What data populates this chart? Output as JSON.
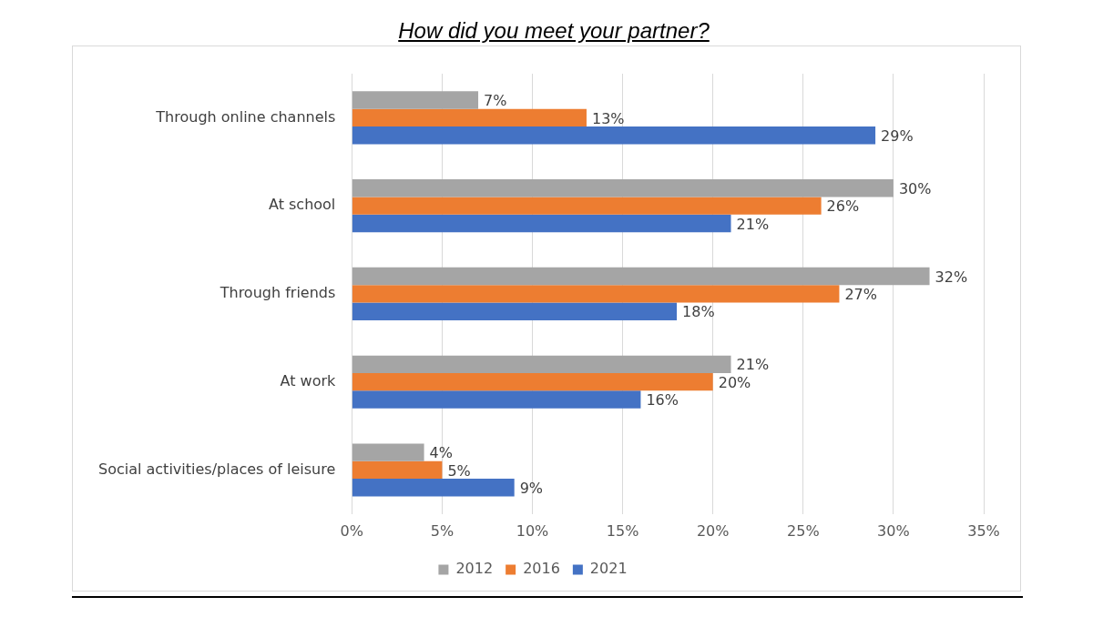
{
  "chart_data": {
    "type": "bar",
    "orientation": "horizontal",
    "title": "How did you meet your partner?",
    "categories": [
      "Through online channels",
      "At school",
      "Through friends",
      "At work",
      "Social activities/places of leisure"
    ],
    "series": [
      {
        "name": "2012",
        "color": "#a5a5a5",
        "values": [
          7,
          30,
          32,
          21,
          4
        ],
        "value_labels": [
          "7%",
          "30%",
          "32%",
          "21%",
          "4%"
        ]
      },
      {
        "name": "2016",
        "color": "#ed7d31",
        "values": [
          13,
          26,
          27,
          20,
          5
        ],
        "value_labels": [
          "13%",
          "26%",
          "27%",
          "20%",
          "5%"
        ]
      },
      {
        "name": "2021",
        "color": "#4472c4",
        "values": [
          29,
          21,
          18,
          16,
          9
        ],
        "value_labels": [
          "29%",
          "21%",
          "18%",
          "16%",
          "9%"
        ]
      }
    ],
    "xlim": [
      0,
      35
    ],
    "xticks": [
      {
        "value": 0,
        "label": "0%"
      },
      {
        "value": 5,
        "label": "5%"
      },
      {
        "value": 10,
        "label": "10%"
      },
      {
        "value": 15,
        "label": "15%"
      },
      {
        "value": 20,
        "label": "20%"
      },
      {
        "value": 25,
        "label": "25%"
      },
      {
        "value": 30,
        "label": "30%"
      },
      {
        "value": 35,
        "label": "35%"
      }
    ],
    "grid": "x",
    "legend": "bottom"
  }
}
